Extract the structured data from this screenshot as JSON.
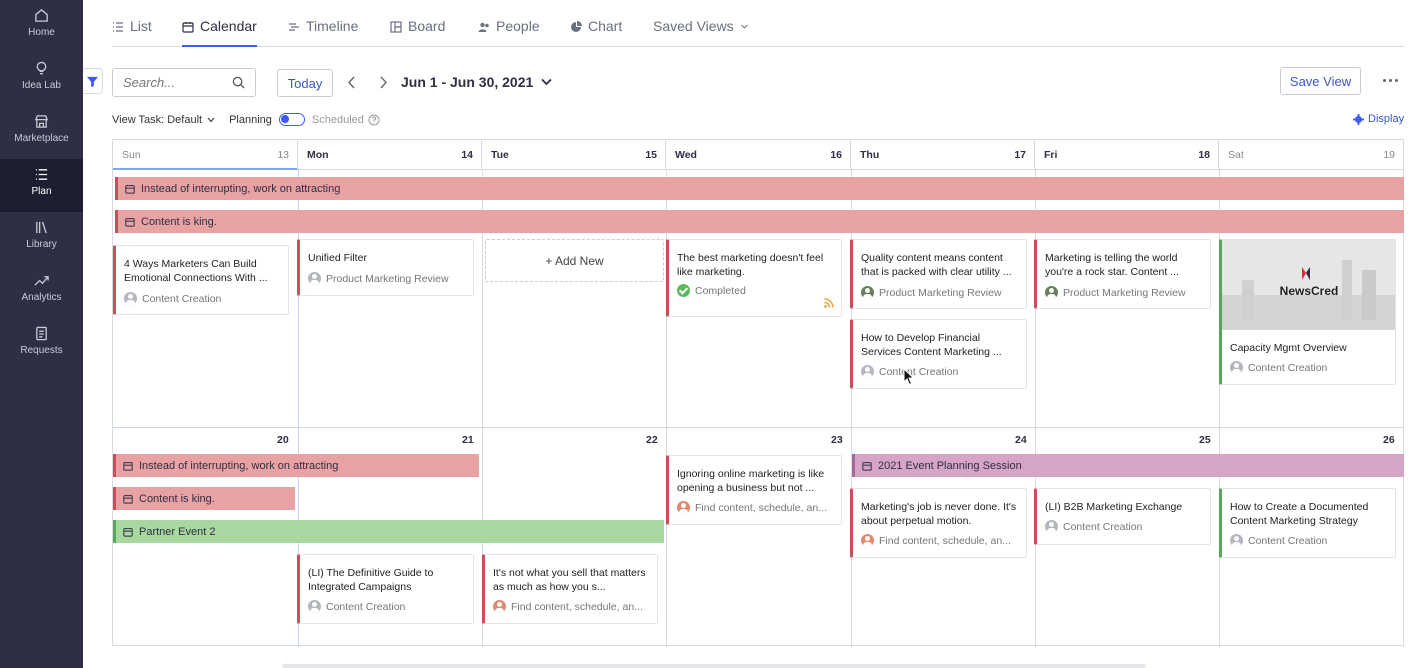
{
  "sidebar": {
    "items": [
      {
        "label": "Home",
        "icon": "home-icon"
      },
      {
        "label": "Idea Lab",
        "icon": "lightbulb-icon"
      },
      {
        "label": "Marketplace",
        "icon": "store-icon"
      },
      {
        "label": "Plan",
        "icon": "list-icon"
      },
      {
        "label": "Library",
        "icon": "library-icon"
      },
      {
        "label": "Analytics",
        "icon": "trend-icon"
      },
      {
        "label": "Requests",
        "icon": "document-icon"
      }
    ],
    "active": "Plan"
  },
  "tabs": [
    {
      "label": "List",
      "icon": "list-icon"
    },
    {
      "label": "Calendar",
      "icon": "calendar-icon",
      "active": true
    },
    {
      "label": "Timeline",
      "icon": "timeline-icon"
    },
    {
      "label": "Board",
      "icon": "board-icon"
    },
    {
      "label": "People",
      "icon": "people-icon"
    },
    {
      "label": "Chart",
      "icon": "pie-chart-icon"
    },
    {
      "label": "Saved Views",
      "icon": "chevron-down-icon"
    }
  ],
  "toolbar": {
    "search_placeholder": "Search...",
    "today_label": "Today",
    "date_range": "Jun 1 - Jun 30, 2021",
    "save_view_label": "Save View"
  },
  "options": {
    "view_task_label": "View Task: Default",
    "planning_label": "Planning",
    "scheduled_label": "Scheduled",
    "display_label": "Display"
  },
  "calendar": {
    "headers": [
      {
        "day": "Sun",
        "date": "13"
      },
      {
        "day": "Mon",
        "date": "14"
      },
      {
        "day": "Tue",
        "date": "15"
      },
      {
        "day": "Wed",
        "date": "16"
      },
      {
        "day": "Thu",
        "date": "17"
      },
      {
        "day": "Fri",
        "date": "18"
      },
      {
        "day": "Sat",
        "date": "19"
      }
    ],
    "week2_dates": [
      "20",
      "21",
      "22",
      "23",
      "24",
      "25",
      "26"
    ],
    "bars": [
      {
        "label": "Instead of interrupting, work on attracting",
        "color": "#e8a2a4"
      },
      {
        "label": "Content is king.",
        "color": "#e8a2a4"
      },
      {
        "label": "Instead of interrupting, work on attracting",
        "color": "#e8a2a4"
      },
      {
        "label": "Content is king.",
        "color": "#e8a2a4"
      },
      {
        "label": "Partner Event 2",
        "color": "#a8d7a0"
      },
      {
        "label": "2021 Event Planning Session",
        "color": "#d6a5c6"
      }
    ],
    "add_new_label": "+ Add New",
    "cards": [
      {
        "title": "4 Ways Marketers Can Build Emotional Connections With ...",
        "sub": "Content Creation"
      },
      {
        "title": "Unified Filter",
        "sub": "Product Marketing Review"
      },
      {
        "title": "The best marketing doesn't feel like marketing.",
        "sub": "Completed"
      },
      {
        "title": "Quality content means content that is packed with clear utility ...",
        "sub": "Product Marketing Review"
      },
      {
        "title": "How to Develop Financial Services Content Marketing ...",
        "sub": "Content Creation"
      },
      {
        "title": "Marketing is telling the world you're a rock star. Content ...",
        "sub": "Product Marketing Review"
      },
      {
        "title": "Capacity Mgmt Overview",
        "sub": "Content Creation",
        "image_text": "NewsCred"
      },
      {
        "title": "Ignoring online marketing is like opening a business but not ...",
        "sub": "Find content, schedule, an..."
      },
      {
        "title": "Marketing's job is never done. It's about perpetual motion.",
        "sub": "Find content, schedule, an..."
      },
      {
        "title": "(LI) B2B Marketing Exchange",
        "sub": "Content Creation"
      },
      {
        "title": "How to Create a Documented Content Marketing Strategy",
        "sub": "Content Creation"
      },
      {
        "title": "(LI) The Definitive Guide to Integrated Campaigns",
        "sub": "Content Creation"
      },
      {
        "title": "It's not what you sell that matters as much as how you s...",
        "sub": "Find content, schedule, an..."
      }
    ]
  },
  "colors": {
    "accent": "#3d5afe",
    "sidebar": "#2e2f44",
    "event_red": "#e8a2a4",
    "event_green": "#a8d7a0",
    "event_purple": "#d6a5c6"
  }
}
